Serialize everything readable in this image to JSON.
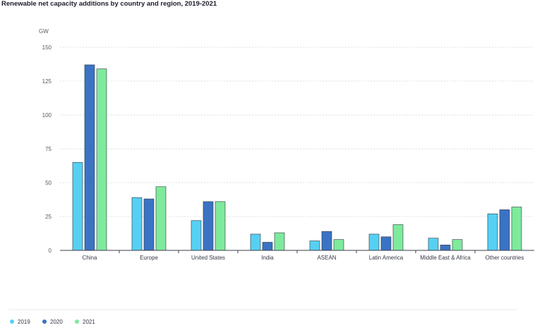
{
  "chart_data": {
    "type": "bar",
    "title": "Renewable net capacity additions by country and region, 2019-2021",
    "ylabel": "GW",
    "xlabel": "",
    "ylim": [
      0,
      150
    ],
    "yticks": [
      0,
      25,
      50,
      75,
      100,
      125,
      150
    ],
    "grid": true,
    "legend_position": "bottom-left",
    "categories": [
      "China",
      "Europe",
      "United States",
      "India",
      "ASEAN",
      "Latin America",
      "Middle East & Africa",
      "Other countries"
    ],
    "series": [
      {
        "name": "2019",
        "color": "#56d0f2",
        "values": [
          65,
          39,
          22,
          12,
          7,
          12,
          9,
          27
        ]
      },
      {
        "name": "2020",
        "color": "#3b73c4",
        "values": [
          137,
          38,
          36,
          6,
          14,
          10,
          4,
          30
        ]
      },
      {
        "name": "2021",
        "color": "#7eea9c",
        "values": [
          134,
          47,
          36,
          13,
          8,
          19,
          8,
          32
        ]
      }
    ]
  }
}
